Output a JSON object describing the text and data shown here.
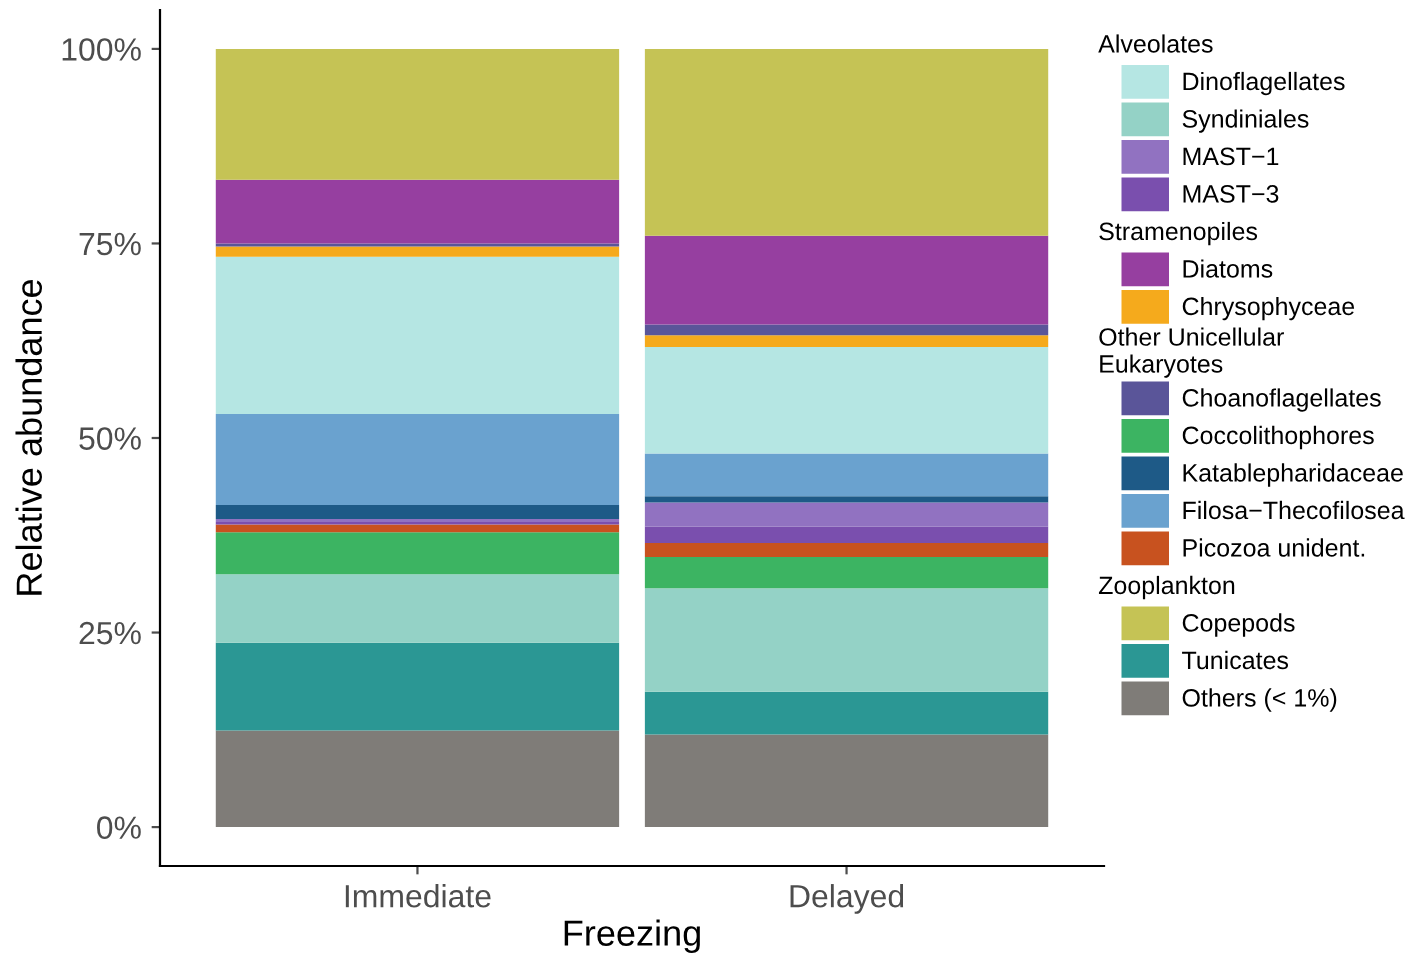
{
  "chart_data": {
    "type": "bar",
    "stacked": true,
    "xlabel": "Freezing",
    "ylabel": "Relative abundance",
    "categories": [
      "Immediate",
      "Delayed"
    ],
    "ylim": [
      -5,
      105
    ],
    "yticks": [
      {
        "value": 0,
        "label": "0%"
      },
      {
        "value": 25,
        "label": "25%"
      },
      {
        "value": 50,
        "label": "50%"
      },
      {
        "value": 75,
        "label": "75%"
      },
      {
        "value": 100,
        "label": "100%"
      }
    ],
    "grid": false,
    "legend": "right",
    "annotations": [
      "Alveolates",
      "Stramenopiles",
      "Other Unicellular\nEukaryotes",
      "Zooplankton"
    ],
    "series": [
      {
        "name": "Others (< 1%)",
        "color": "#7f7c78",
        "values": [
          12.4,
          11.9
        ]
      },
      {
        "name": "Tunicates",
        "color": "#2b9794",
        "values": [
          11.3,
          5.5
        ]
      },
      {
        "name": "Syndiniales",
        "color": "#94d2c6",
        "values": [
          8.8,
          13.3
        ]
      },
      {
        "name": "Coccolithophores",
        "color": "#3cb462",
        "values": [
          5.4,
          4.0
        ]
      },
      {
        "name": "Picozoa unident.",
        "color": "#c8521f",
        "values": [
          1.0,
          1.8
        ]
      },
      {
        "name": "MAST−3",
        "color": "#7a4fae",
        "values": [
          0.3,
          2.1
        ]
      },
      {
        "name": "MAST−1",
        "color": "#9172c1",
        "values": [
          0.4,
          3.1
        ]
      },
      {
        "name": "Katablepharidaceae",
        "color": "#1e5a87",
        "values": [
          1.8,
          0.8
        ]
      },
      {
        "name": "Filosa−Thecofilosea",
        "color": "#6aa2cf",
        "values": [
          11.7,
          5.5
        ]
      },
      {
        "name": "Dinoflagellates",
        "color": "#b5e6e3",
        "values": [
          20.2,
          13.7
        ]
      },
      {
        "name": "Chrysophyceae",
        "color": "#f5aa1c",
        "values": [
          1.3,
          1.5
        ]
      },
      {
        "name": "Choanoflagellates",
        "color": "#5a5599",
        "values": [
          0.4,
          1.4
        ]
      },
      {
        "name": "Diatoms",
        "color": "#963fa0",
        "values": [
          8.2,
          11.4
        ]
      },
      {
        "name": "Copepods",
        "color": "#c5c355",
        "values": [
          16.8,
          24.0
        ]
      }
    ]
  }
}
